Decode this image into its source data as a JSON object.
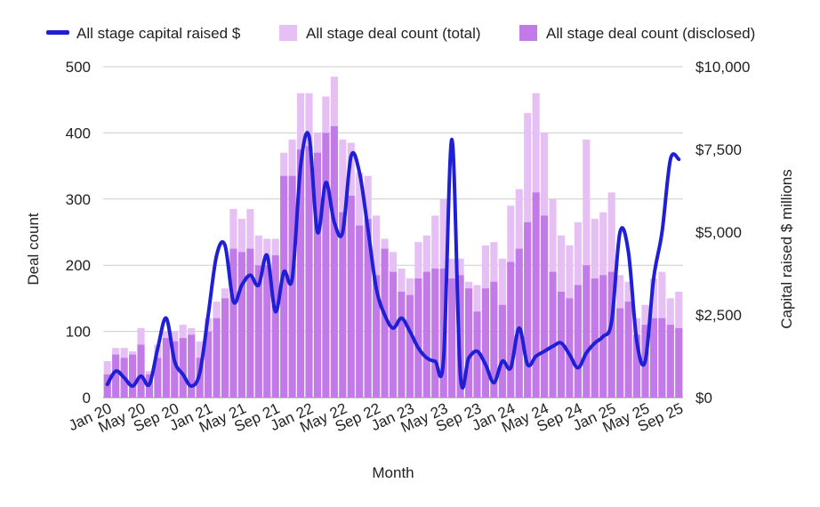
{
  "chart_data": {
    "type": "bar",
    "xlabel": "Month",
    "ylabel_left": "Deal count",
    "ylabel_right": "Capital raised $ millions",
    "ylim_left": [
      0,
      500
    ],
    "ylim_right": [
      0,
      10000
    ],
    "yticks_left": [
      0,
      100,
      200,
      300,
      400,
      500
    ],
    "yticks_right": [
      "$0",
      "$2,500",
      "$5,000",
      "$7,500",
      "$10,000"
    ],
    "yticks_right_values": [
      0,
      2500,
      5000,
      7500,
      10000
    ],
    "xticks": [
      "Jan 20",
      "May 20",
      "Sep 20",
      "Jan 21",
      "May 21",
      "Sep 21",
      "Jan 22",
      "May 22",
      "Sep 22",
      "Jan 23",
      "May 23",
      "Sep 23",
      "Jan 24",
      "May 24",
      "Sep 24",
      "Jan 25",
      "May 25",
      "Sep 25"
    ],
    "xtick_index": [
      0,
      4,
      8,
      12,
      16,
      20,
      24,
      28,
      32,
      36,
      40,
      44,
      48,
      52,
      56,
      60,
      64,
      68
    ],
    "grid": true,
    "legend_position": "top",
    "colors": {
      "line": "#1f1fd6",
      "bar_total": "#e6bff5",
      "bar_disclosed": "#c27ae8",
      "grid": "#cccccc"
    },
    "categories": [
      "Jan 20",
      "Feb 20",
      "Mar 20",
      "Apr 20",
      "May 20",
      "Jun 20",
      "Jul 20",
      "Aug 20",
      "Sep 20",
      "Oct 20",
      "Nov 20",
      "Dec 20",
      "Jan 21",
      "Feb 21",
      "Mar 21",
      "Apr 21",
      "May 21",
      "Jun 21",
      "Jul 21",
      "Aug 21",
      "Sep 21",
      "Oct 21",
      "Nov 21",
      "Dec 21",
      "Jan 22",
      "Feb 22",
      "Mar 22",
      "Apr 22",
      "May 22",
      "Jun 22",
      "Jul 22",
      "Aug 22",
      "Sep 22",
      "Oct 22",
      "Nov 22",
      "Dec 22",
      "Jan 23",
      "Feb 23",
      "Mar 23",
      "Apr 23",
      "May 23",
      "Jun 23",
      "Jul 23",
      "Aug 23",
      "Sep 23",
      "Oct 23",
      "Nov 23",
      "Dec 23",
      "Jan 24",
      "Feb 24",
      "Mar 24",
      "Apr 24",
      "May 24",
      "Jun 24",
      "Jul 24",
      "Aug 24",
      "Sep 24",
      "Oct 24",
      "Nov 24",
      "Dec 24",
      "Jan 25",
      "Feb 25",
      "Mar 25",
      "Apr 25",
      "May 25",
      "Jun 25",
      "Jul 25",
      "Aug 25",
      "Sep 25"
    ],
    "series": [
      {
        "name": "All stage capital raised $",
        "kind": "line",
        "axis": "right",
        "values": [
          400,
          800,
          600,
          350,
          650,
          400,
          1500,
          2400,
          1100,
          700,
          350,
          750,
          2500,
          4300,
          4600,
          2900,
          3400,
          3700,
          3400,
          4300,
          2600,
          3800,
          3600,
          7000,
          7900,
          5000,
          6500,
          5300,
          5000,
          7300,
          6800,
          5100,
          3300,
          2500,
          2100,
          2400,
          2000,
          1500,
          1200,
          1100,
          1150,
          7800,
          700,
          1200,
          1400,
          1000,
          450,
          1100,
          900,
          2100,
          1000,
          1250,
          1400,
          1550,
          1650,
          1300,
          900,
          1350,
          1650,
          1850,
          2300,
          5000,
          4400,
          1700,
          1100,
          3600,
          5000,
          7200,
          7200
        ]
      },
      {
        "name": "All stage deal count (total)",
        "kind": "bar",
        "axis": "left",
        "values": [
          55,
          75,
          75,
          70,
          105,
          40,
          80,
          100,
          100,
          110,
          105,
          85,
          120,
          145,
          165,
          285,
          270,
          285,
          245,
          240,
          240,
          370,
          390,
          460,
          460,
          400,
          455,
          485,
          390,
          385,
          340,
          335,
          275,
          240,
          220,
          195,
          180,
          235,
          245,
          275,
          300,
          210,
          210,
          175,
          170,
          230,
          235,
          210,
          290,
          315,
          430,
          460,
          400,
          300,
          245,
          230,
          265,
          390,
          270,
          280,
          310,
          185,
          175,
          120,
          140,
          180,
          190,
          150,
          160
        ]
      },
      {
        "name": "All stage deal count (disclosed)",
        "kind": "bar",
        "axis": "left",
        "values": [
          35,
          65,
          60,
          65,
          80,
          35,
          60,
          90,
          85,
          90,
          95,
          60,
          100,
          120,
          150,
          225,
          220,
          225,
          200,
          200,
          215,
          335,
          335,
          375,
          380,
          370,
          400,
          410,
          280,
          305,
          260,
          270,
          185,
          225,
          190,
          160,
          155,
          180,
          190,
          195,
          195,
          180,
          185,
          165,
          130,
          165,
          175,
          140,
          205,
          225,
          265,
          310,
          275,
          190,
          160,
          150,
          170,
          200,
          180,
          185,
          190,
          135,
          145,
          95,
          110,
          120,
          120,
          110,
          105
        ]
      }
    ]
  }
}
